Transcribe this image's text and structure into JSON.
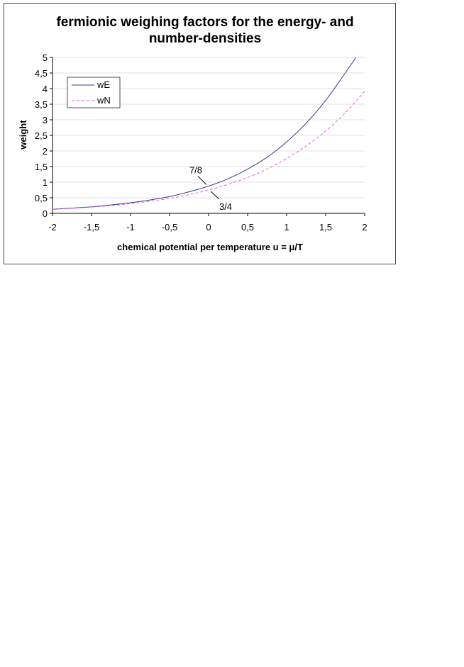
{
  "chart_data": {
    "type": "line",
    "title": [
      "fermionic weighing factors for the energy- and",
      "number-densities"
    ],
    "xlabel": "chemical potential per temperature u = μ/T",
    "ylabel": "weight",
    "xlim": [
      -2,
      2
    ],
    "ylim": [
      0,
      5
    ],
    "x_ticks": [
      -2,
      -1.5,
      -1,
      -0.5,
      0,
      0.5,
      1,
      1.5,
      2
    ],
    "x_tick_labels": [
      "-2",
      "-1,5",
      "-1",
      "-0,5",
      "0",
      "0,5",
      "1",
      "1,5",
      "2"
    ],
    "y_ticks": [
      0,
      0.5,
      1,
      1.5,
      2,
      2.5,
      3,
      3.5,
      4,
      4.5,
      5
    ],
    "y_tick_labels": [
      "0",
      "0,5",
      "1",
      "1,5",
      "2",
      "2,5",
      "3",
      "3,5",
      "4",
      "4,5",
      "5"
    ],
    "grid": "horizontal",
    "legend_position": "top-left",
    "x": [
      -2,
      -1.75,
      -1.5,
      -1.25,
      -1,
      -0.75,
      -0.5,
      -0.25,
      0,
      0.25,
      0.5,
      0.75,
      1,
      1.25,
      1.5,
      1.75,
      2
    ],
    "series": [
      {
        "name": "wE",
        "color": "#3a3a8c",
        "style": "solid",
        "values": [
          0.13,
          0.17,
          0.21,
          0.27,
          0.34,
          0.43,
          0.54,
          0.69,
          0.875,
          1.11,
          1.42,
          1.8,
          2.29,
          2.89,
          3.62,
          4.5,
          5.4
        ]
      },
      {
        "name": "wN",
        "color": "#e060e0",
        "style": "dashed",
        "values": [
          0.13,
          0.16,
          0.2,
          0.25,
          0.31,
          0.39,
          0.48,
          0.6,
          0.75,
          0.93,
          1.15,
          1.42,
          1.76,
          2.16,
          2.64,
          3.22,
          3.92
        ]
      }
    ],
    "annotations": [
      {
        "text": "7/8",
        "x": 0,
        "y": 0.875
      },
      {
        "text": "3/4",
        "x": 0,
        "y": 0.75
      }
    ]
  }
}
